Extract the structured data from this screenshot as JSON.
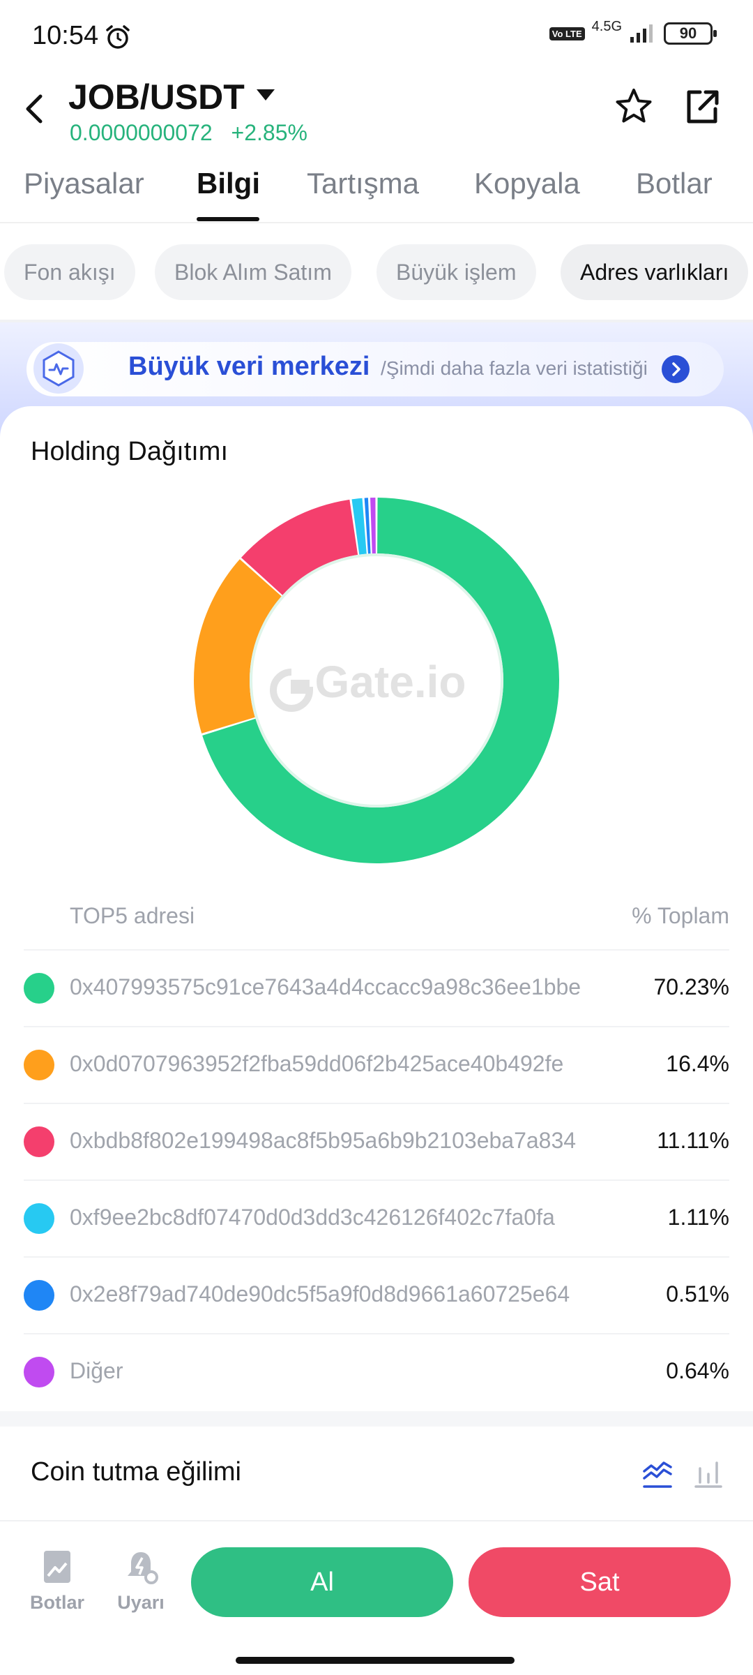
{
  "status_bar": {
    "time": "10:54",
    "volte": "Vo LTE",
    "network": "4.5G",
    "battery": "90"
  },
  "header": {
    "pair": "JOB/USDT",
    "price": "0.0000000072",
    "change": "+2.85%",
    "price_color": "#27b37c"
  },
  "tabs": [
    {
      "label": "Piyasalar",
      "active": false
    },
    {
      "label": "Bilgi",
      "active": true
    },
    {
      "label": "Tartışma",
      "active": false
    },
    {
      "label": "Kopyala",
      "active": false
    },
    {
      "label": "Botlar",
      "active": false
    }
  ],
  "chips": [
    {
      "label": "Fon akışı"
    },
    {
      "label": "Blok Alım Satım"
    },
    {
      "label": "Büyük işlem"
    },
    {
      "label": "Adres varlıkları",
      "active": true
    }
  ],
  "banner": {
    "title": "Büyük veri merkezi",
    "subtitle": "/Şimdi daha fazla veri istatistiği"
  },
  "holding": {
    "title": "Holding Dağıtımı",
    "watermark": "Gate.io",
    "column_left": "TOP5 adresi",
    "column_right": "% Toplam"
  },
  "chart_data": {
    "type": "pie",
    "title": "Holding Dağıtımı",
    "categories": [
      "0x407993575c91ce7643a4d4ccacc9a98c36ee1bbe",
      "0x0d0707963952f2fba59dd06f2b425ace40b492fe",
      "0xbdb8f802e199498ac8f5b95a6b9b2103eba7a834",
      "0xf9ee2bc8df07470d0d3dd3c426126f402c7fa0fa",
      "0x2e8f79ad740de90dc5f5a9f0d8d9661a60725e64",
      "Diğer"
    ],
    "values": [
      70.23,
      16.4,
      11.11,
      1.11,
      0.51,
      0.64
    ],
    "labels": [
      "70.23%",
      "16.4%",
      "11.11%",
      "1.11%",
      "0.51%",
      "0.64%"
    ],
    "colors": [
      "#27d08a",
      "#ff9f1c",
      "#f43f6d",
      "#27c9f2",
      "#1f86f5",
      "#c04bf0"
    ]
  },
  "trend": {
    "title": "Coin tutma eğilimi"
  },
  "bottom_bar": {
    "bots_label": "Botlar",
    "alert_label": "Uyarı",
    "buy_label": "Al",
    "sell_label": "Sat"
  }
}
